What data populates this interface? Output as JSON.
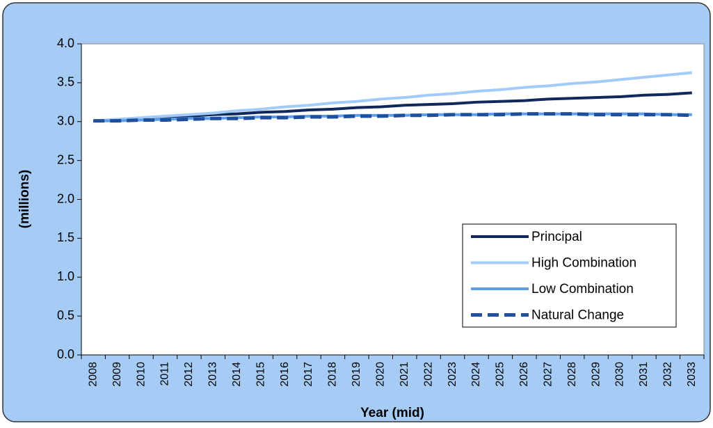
{
  "chart_data": {
    "type": "line",
    "y_label": "(millions)",
    "x_label": "Year (mid)",
    "categories": [
      "2008",
      "2009",
      "2010",
      "2011",
      "2012",
      "2013",
      "2014",
      "2015",
      "2016",
      "2017",
      "2018",
      "2019",
      "2020",
      "2021",
      "2022",
      "2023",
      "2024",
      "2025",
      "2026",
      "2027",
      "2028",
      "2029",
      "2030",
      "2031",
      "2032",
      "2033"
    ],
    "series": [
      {
        "name": "Principal",
        "color": "#10285a",
        "dashed": false,
        "values": [
          3.01,
          3.02,
          3.04,
          3.05,
          3.07,
          3.09,
          3.1,
          3.12,
          3.13,
          3.15,
          3.16,
          3.18,
          3.19,
          3.21,
          3.22,
          3.23,
          3.25,
          3.26,
          3.27,
          3.29,
          3.3,
          3.31,
          3.32,
          3.34,
          3.35,
          3.37
        ]
      },
      {
        "name": "High Combination",
        "color": "#a3cbf7",
        "dashed": false,
        "values": [
          3.01,
          3.03,
          3.05,
          3.07,
          3.09,
          3.11,
          3.14,
          3.16,
          3.19,
          3.21,
          3.24,
          3.26,
          3.29,
          3.31,
          3.34,
          3.36,
          3.39,
          3.41,
          3.44,
          3.46,
          3.49,
          3.51,
          3.54,
          3.57,
          3.6,
          3.63
        ]
      },
      {
        "name": "Low Combination",
        "color": "#5c9ded",
        "dashed": false,
        "values": [
          3.01,
          3.01,
          3.02,
          3.03,
          3.04,
          3.04,
          3.05,
          3.06,
          3.06,
          3.07,
          3.07,
          3.08,
          3.08,
          3.08,
          3.09,
          3.09,
          3.09,
          3.1,
          3.1,
          3.1,
          3.1,
          3.1,
          3.1,
          3.1,
          3.09,
          3.09
        ]
      },
      {
        "name": "Natural Change",
        "color": "#1f4f9c",
        "dashed": true,
        "values": [
          3.01,
          3.01,
          3.02,
          3.02,
          3.03,
          3.04,
          3.04,
          3.05,
          3.05,
          3.06,
          3.06,
          3.07,
          3.07,
          3.08,
          3.08,
          3.09,
          3.09,
          3.09,
          3.1,
          3.1,
          3.1,
          3.09,
          3.09,
          3.09,
          3.09,
          3.08
        ]
      }
    ],
    "ylim": [
      0,
      4
    ],
    "yticks": [
      {
        "value": 0,
        "label": "0.0"
      },
      0.5,
      {
        "value": 1,
        "label": "1.0"
      },
      1.5,
      {
        "value": 2,
        "label": "2.0"
      },
      2.5,
      {
        "value": 3,
        "label": "3.0"
      },
      3.5,
      {
        "value": 4,
        "label": "4.0"
      }
    ],
    "grid": false,
    "legend": "lower right"
  }
}
